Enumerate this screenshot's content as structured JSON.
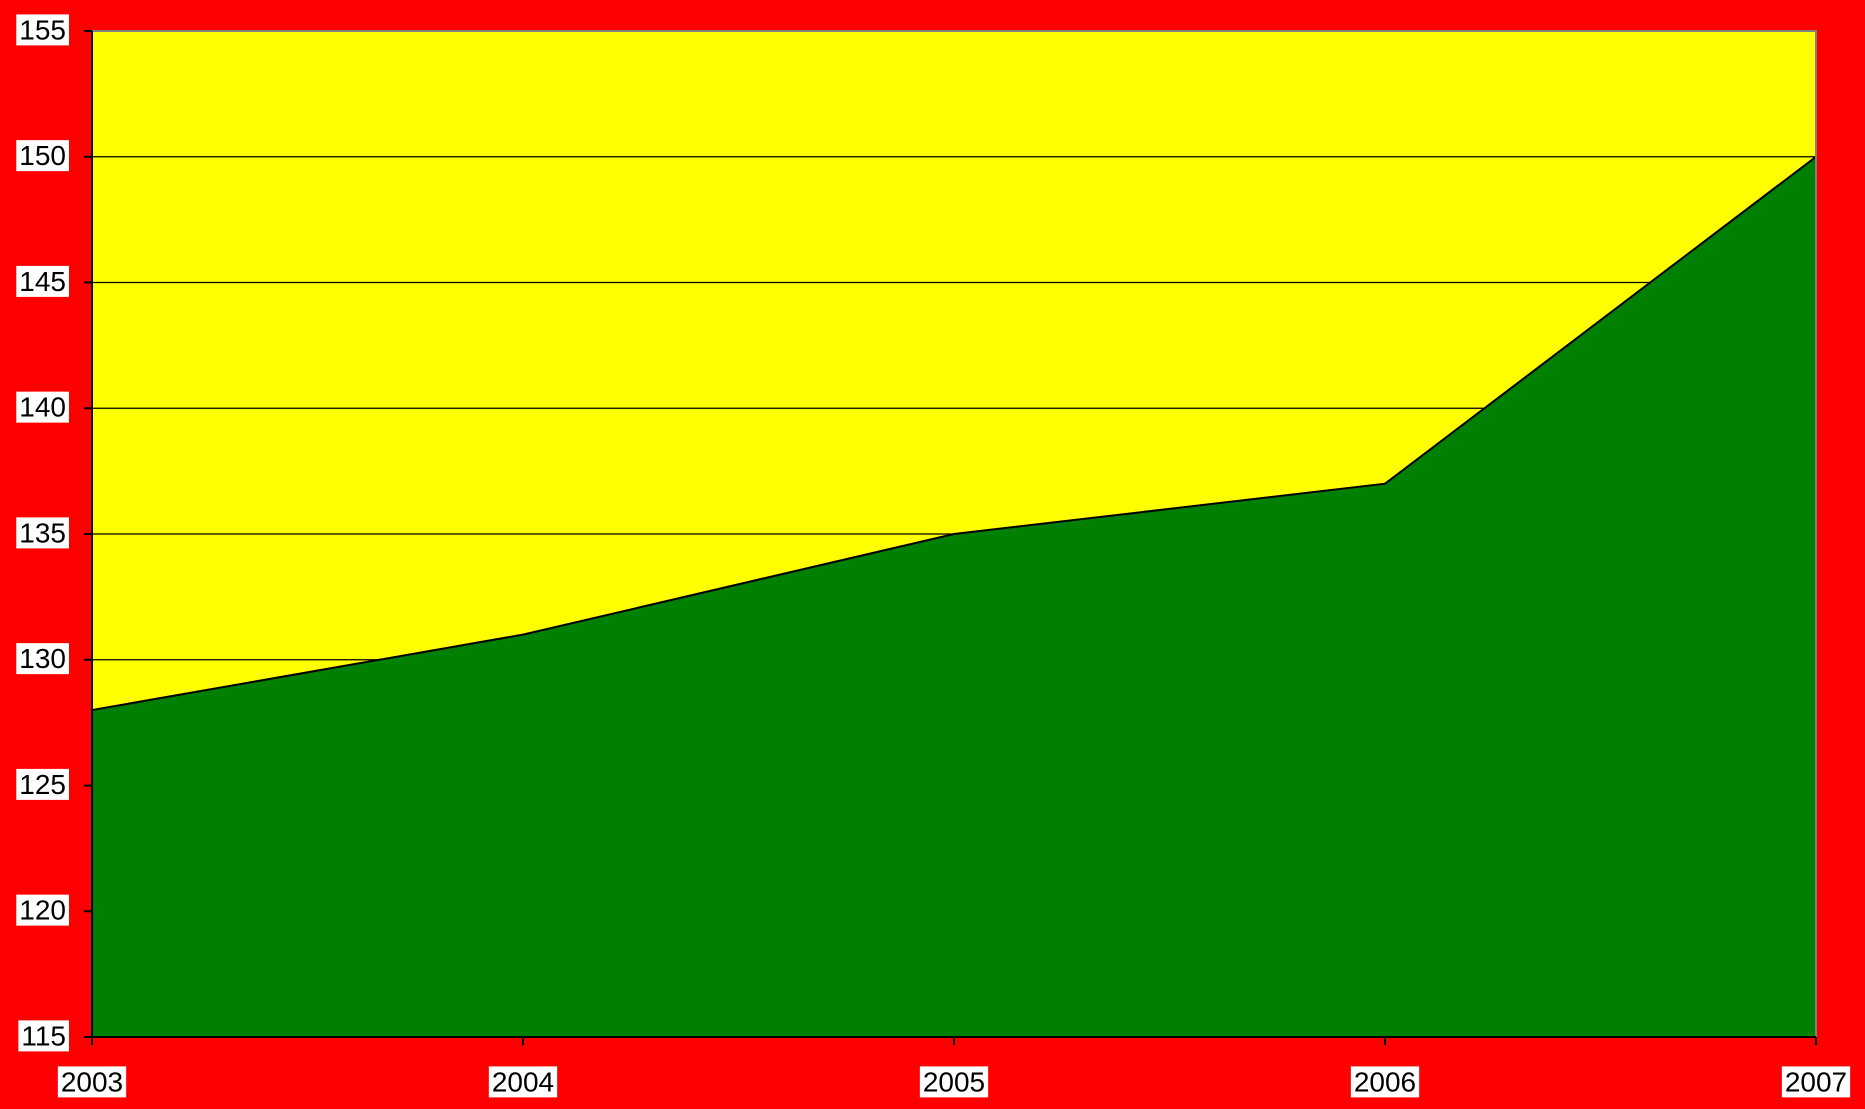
{
  "chart_data": {
    "type": "area",
    "categories": [
      "2003",
      "2004",
      "2005",
      "2006",
      "2007"
    ],
    "values": [
      128,
      131,
      135,
      137,
      150
    ],
    "color": "#008000",
    "plot_background": "#ffff00",
    "background": "#ff0000",
    "ylim": [
      115,
      155
    ],
    "yticks": [
      115,
      120,
      125,
      130,
      135,
      140,
      145,
      150,
      155
    ],
    "grid": true
  }
}
